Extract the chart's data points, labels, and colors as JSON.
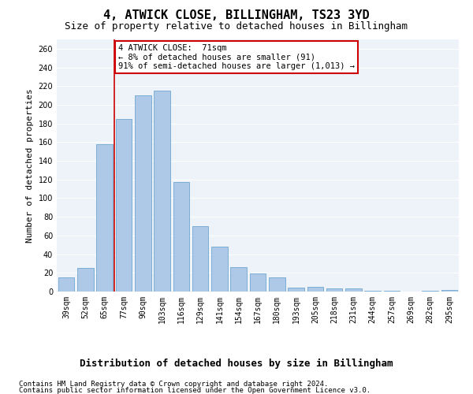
{
  "title": "4, ATWICK CLOSE, BILLINGHAM, TS23 3YD",
  "subtitle": "Size of property relative to detached houses in Billingham",
  "xlabel": "Distribution of detached houses by size in Billingham",
  "ylabel": "Number of detached properties",
  "categories": [
    "39sqm",
    "52sqm",
    "65sqm",
    "77sqm",
    "90sqm",
    "103sqm",
    "116sqm",
    "129sqm",
    "141sqm",
    "154sqm",
    "167sqm",
    "180sqm",
    "193sqm",
    "205sqm",
    "218sqm",
    "231sqm",
    "244sqm",
    "257sqm",
    "269sqm",
    "282sqm",
    "295sqm"
  ],
  "values": [
    15,
    25,
    158,
    185,
    210,
    215,
    117,
    70,
    48,
    26,
    19,
    15,
    4,
    5,
    3,
    3,
    1,
    1,
    0,
    1,
    2
  ],
  "bar_color": "#aec8e8",
  "bar_edge_color": "#6fa8d0",
  "vline_x": 2.5,
  "vline_color": "#cc0000",
  "annotation_text": "4 ATWICK CLOSE:  71sqm\n← 8% of detached houses are smaller (91)\n91% of semi-detached houses are larger (1,013) →",
  "annotation_box_color": "#ffffff",
  "annotation_box_edge_color": "#cc0000",
  "ylim": [
    0,
    270
  ],
  "yticks": [
    0,
    20,
    40,
    60,
    80,
    100,
    120,
    140,
    160,
    180,
    200,
    220,
    240,
    260
  ],
  "footer1": "Contains HM Land Registry data © Crown copyright and database right 2024.",
  "footer2": "Contains public sector information licensed under the Open Government Licence v3.0.",
  "bg_color": "#eef2f9",
  "grid_color": "#ffffff",
  "title_fontsize": 11,
  "subtitle_fontsize": 9,
  "tick_fontsize": 7,
  "ylabel_fontsize": 8,
  "xlabel_fontsize": 9,
  "footer_fontsize": 6.5
}
